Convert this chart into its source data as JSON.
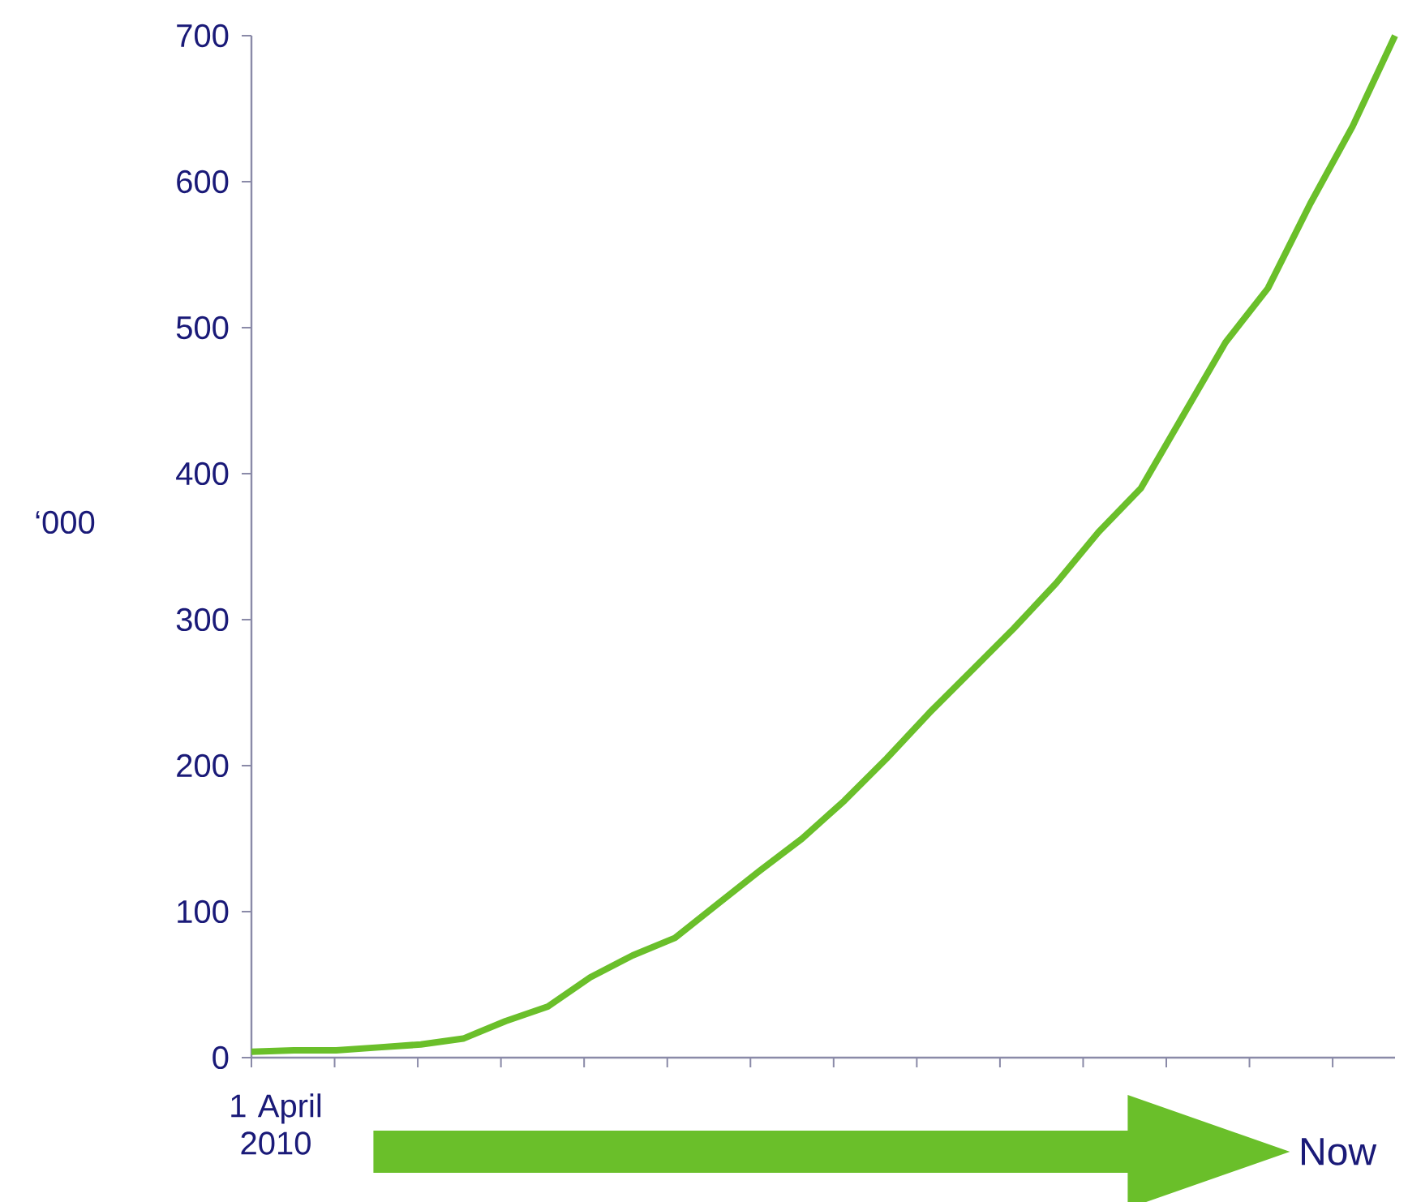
{
  "chart_data": {
    "type": "line",
    "ylabel": "‘000",
    "annotations": [
      "1 April 2010",
      "Now"
    ],
    "categories": [
      null,
      null,
      null,
      null,
      null,
      null,
      null,
      null,
      null,
      null,
      null,
      null,
      null,
      null,
      null,
      null,
      null,
      null,
      null,
      null,
      null,
      null,
      null,
      null,
      null,
      null,
      null,
      null
    ],
    "series": [
      {
        "color": "#6abf2a",
        "values": [
          4,
          5,
          5,
          7,
          9,
          13,
          25,
          35,
          55,
          70,
          82,
          105,
          128,
          150,
          176,
          205,
          236,
          265,
          294,
          325,
          360,
          390,
          440,
          490,
          527,
          585,
          638,
          700
        ]
      }
    ],
    "tick_labels": "y",
    "ylim": [
      0,
      700
    ],
    "yticks": [
      0,
      100,
      200,
      300,
      400,
      500,
      600,
      700
    ]
  }
}
